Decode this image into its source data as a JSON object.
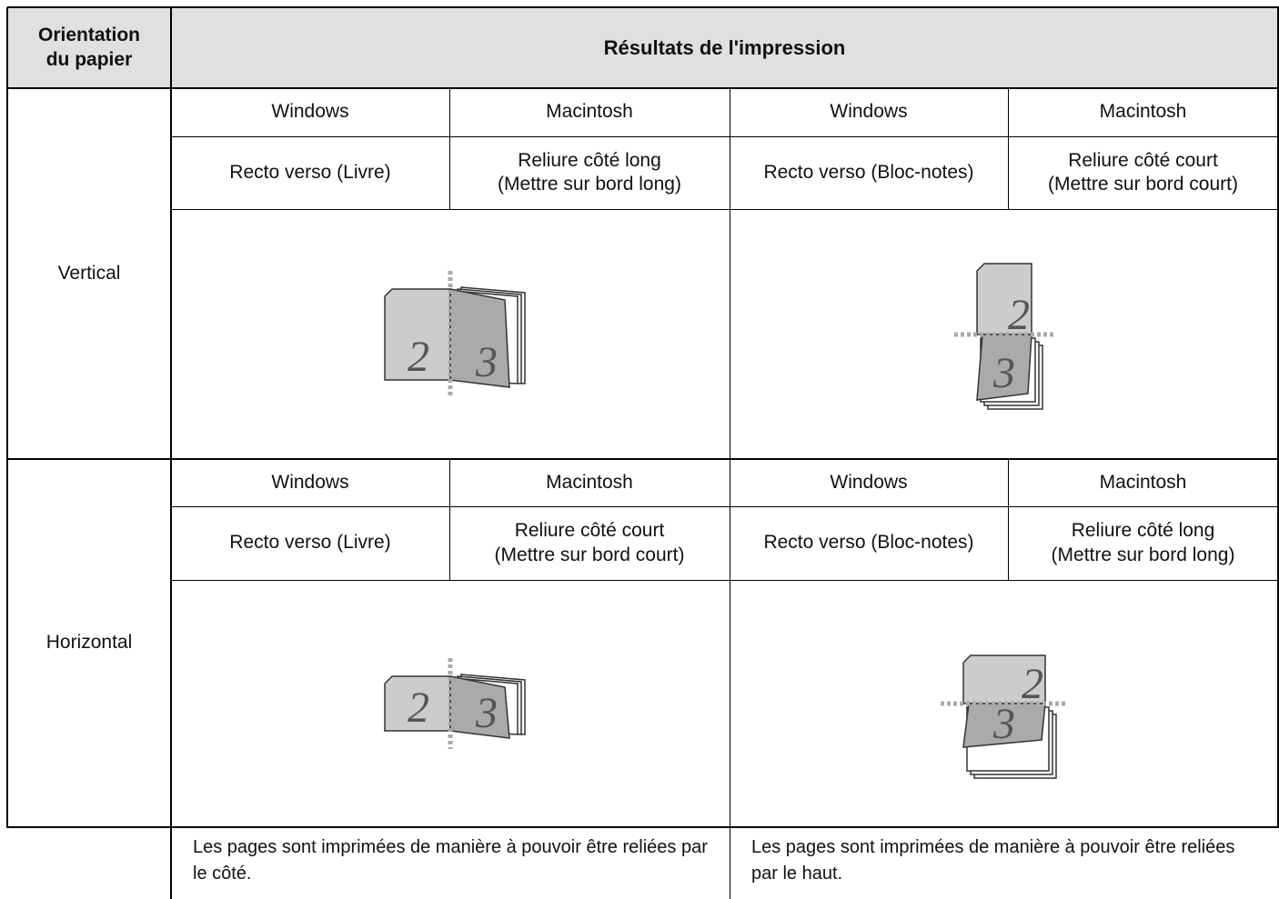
{
  "table": {
    "header": [
      "Orientation\ndu papier",
      "Résultats de l'impression"
    ],
    "sections": [
      {
        "orientation": "Vertical",
        "os": [
          "Windows",
          "Macintosh",
          "Windows",
          "Macintosh"
        ],
        "modes": [
          "Recto verso (Livre)",
          "Reliure côté long\n(Mettre sur bord long)",
          "Recto verso (Bloc-notes)",
          "Reliure côté court\n(Mettre sur bord court)"
        ],
        "illustrations": [
          {
            "front": "2",
            "back": "3"
          },
          {
            "front": "2",
            "back": "3"
          }
        ]
      },
      {
        "orientation": "Horizontal",
        "os": [
          "Windows",
          "Macintosh",
          "Windows",
          "Macintosh"
        ],
        "modes": [
          "Recto verso (Livre)",
          "Reliure côté court\n(Mettre sur bord court)",
          "Recto verso (Bloc-notes)",
          "Reliure côté long\n(Mettre sur bord long)"
        ],
        "illustrations": [
          {
            "front": "2",
            "back": "3"
          },
          {
            "front": "2",
            "back": "3"
          }
        ]
      }
    ],
    "notes": [
      "Les pages sont imprimées de manière à pouvoir être reliées par le côté.",
      "Les pages sont imprimées de manière à pouvoir être reliées par le haut."
    ]
  }
}
